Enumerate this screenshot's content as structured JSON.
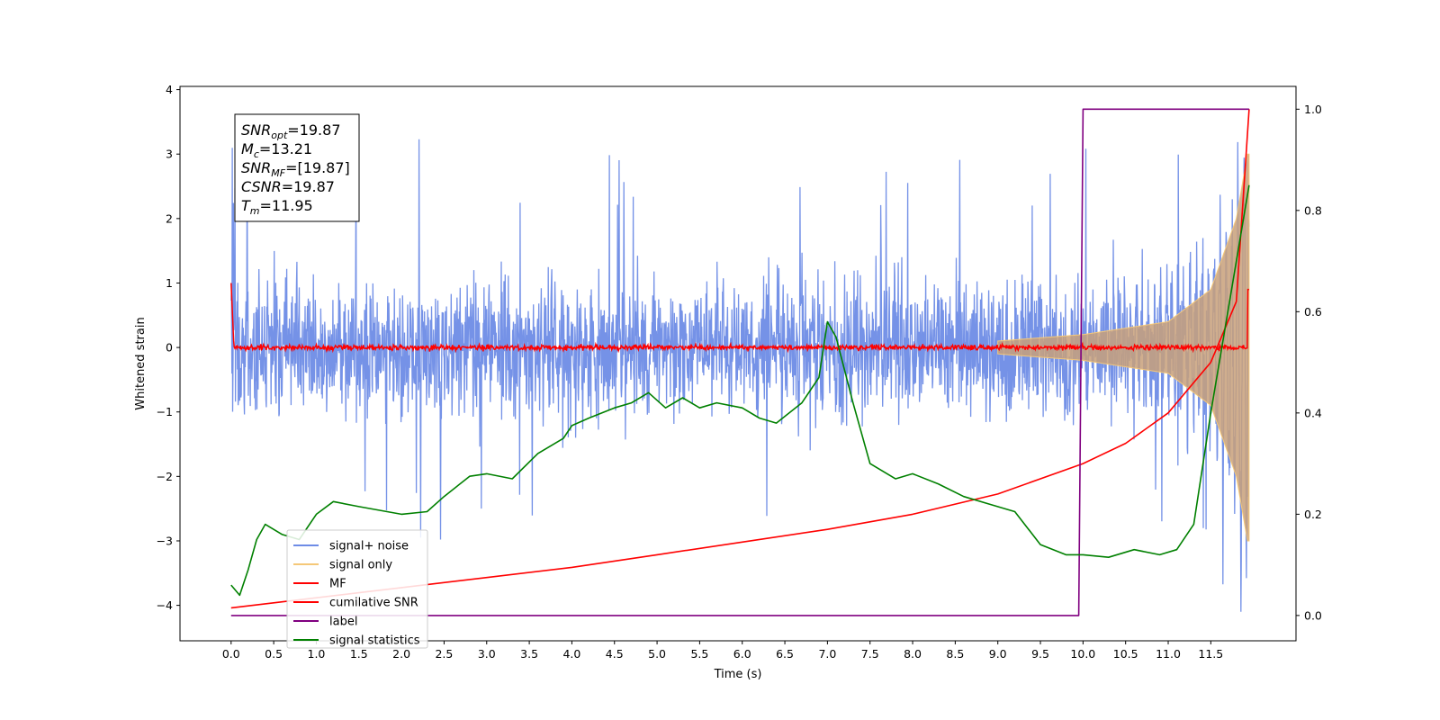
{
  "chart_data": {
    "type": "line",
    "xlabel": "Time (s)",
    "ylabel": "Whitened strain",
    "xlim": [
      -0.6,
      12.5
    ],
    "ylim": [
      -4.55,
      4.05
    ],
    "y2lim": [
      -0.05,
      1.045
    ],
    "x_ticks": [
      "0.0",
      "0.5",
      "1.0",
      "1.5",
      "2.0",
      "2.5",
      "3.0",
      "3.5",
      "4.0",
      "4.5",
      "5.0",
      "5.5",
      "6.0",
      "6.5",
      "7.0",
      "7.5",
      "8.0",
      "8.5",
      "9.0",
      "9.5",
      "10.0",
      "10.5",
      "11.0",
      "11.5"
    ],
    "y_ticks": [
      "4",
      "3",
      "2",
      "1",
      "0",
      "−1",
      "−2",
      "−3",
      "−4"
    ],
    "y2_ticks": [
      "1.0",
      "0.8",
      "0.6",
      "0.4",
      "0.2",
      "0.0"
    ],
    "annotation": [
      {
        "base": "SNR",
        "sub": "opt",
        "value": "=19.87"
      },
      {
        "base": "M",
        "sub": "c",
        "value": "=13.21"
      },
      {
        "base": "SNR",
        "sub": "MF",
        "value": "=[19.87]"
      },
      {
        "base": "CSNR",
        "sub": "",
        "value": "=19.87"
      },
      {
        "base": "T",
        "sub": "m",
        "value": "=11.95"
      }
    ],
    "legend_position": "lower-left",
    "series": [
      {
        "name": "signal+ noise",
        "color": "#6e8ce6",
        "axis": "left",
        "noise_band": [
          -1.9,
          1.9
        ],
        "peak_range": [
          -4.1,
          3.3
        ]
      },
      {
        "name": "signal only",
        "color": "#f5c878",
        "axis": "left",
        "chirp_envelope": {
          "t": [
            9.0,
            10.0,
            11.0,
            11.5,
            11.8,
            11.93
          ],
          "amp": [
            0.1,
            0.2,
            0.4,
            0.9,
            2.0,
            3.0
          ]
        }
      },
      {
        "name": "MF",
        "color": "#ff0000",
        "axis": "left",
        "baseline": 0.0,
        "fluctuation": 0.1
      },
      {
        "name": "cumilative SNR",
        "color": "#ff0000",
        "axis": "right",
        "x": [
          0.0,
          1.0,
          2.0,
          3.0,
          4.0,
          5.0,
          6.0,
          7.0,
          8.0,
          9.0,
          10.0,
          10.5,
          11.0,
          11.5,
          11.8,
          11.95
        ],
        "y": [
          0.015,
          0.035,
          0.055,
          0.075,
          0.095,
          0.12,
          0.145,
          0.17,
          0.2,
          0.24,
          0.3,
          0.34,
          0.4,
          0.5,
          0.62,
          1.0
        ]
      },
      {
        "name": "label",
        "color": "#800080",
        "axis": "right",
        "x": [
          0.0,
          9.95,
          10.0,
          11.95
        ],
        "y": [
          0.0,
          0.0,
          1.0,
          1.0
        ]
      },
      {
        "name": "signal statistics",
        "color": "#008000",
        "axis": "right",
        "x": [
          0.0,
          0.1,
          0.2,
          0.3,
          0.4,
          0.6,
          0.8,
          1.0,
          1.2,
          1.5,
          2.0,
          2.3,
          2.5,
          2.8,
          3.0,
          3.3,
          3.6,
          3.9,
          4.0,
          4.2,
          4.5,
          4.7,
          4.9,
          5.1,
          5.3,
          5.5,
          5.7,
          6.0,
          6.2,
          6.4,
          6.7,
          6.9,
          7.0,
          7.1,
          7.3,
          7.5,
          7.8,
          8.0,
          8.3,
          8.6,
          8.9,
          9.2,
          9.5,
          9.8,
          10.0,
          10.3,
          10.6,
          10.9,
          11.1,
          11.3,
          11.5,
          11.7,
          11.95
        ],
        "y": [
          0.06,
          0.04,
          0.09,
          0.15,
          0.18,
          0.16,
          0.15,
          0.2,
          0.225,
          0.215,
          0.2,
          0.205,
          0.235,
          0.275,
          0.28,
          0.27,
          0.32,
          0.35,
          0.375,
          0.39,
          0.41,
          0.42,
          0.44,
          0.41,
          0.43,
          0.41,
          0.42,
          0.41,
          0.39,
          0.38,
          0.42,
          0.47,
          0.58,
          0.55,
          0.42,
          0.3,
          0.27,
          0.28,
          0.26,
          0.235,
          0.22,
          0.205,
          0.14,
          0.12,
          0.12,
          0.115,
          0.13,
          0.12,
          0.13,
          0.18,
          0.4,
          0.6,
          0.85
        ]
      }
    ]
  }
}
